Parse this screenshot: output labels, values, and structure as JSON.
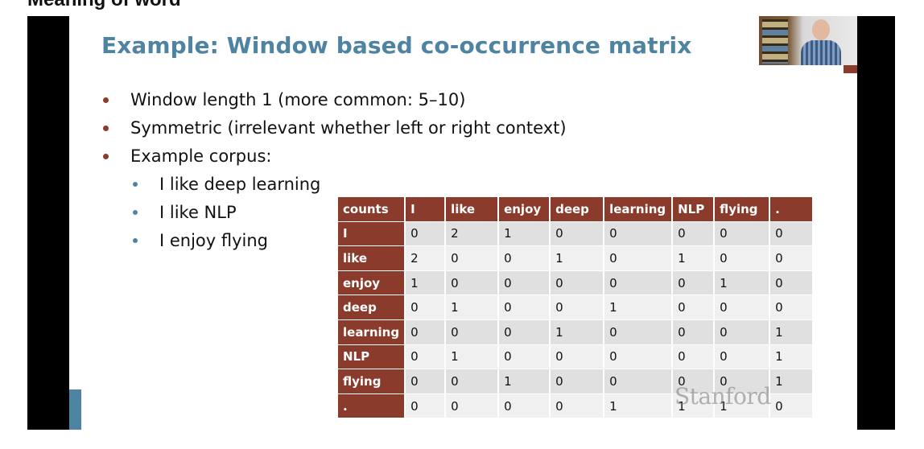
{
  "top_caption": "Meaning of word",
  "slide": {
    "title": "Example: Window based co-occurrence matrix",
    "bullets": [
      "Window length 1 (more common: 5–10)",
      "Symmetric (irrelevant whether left or right context)",
      "Example corpus:"
    ],
    "sub_bullets": [
      "I like deep learning",
      "I like NLP",
      "I enjoy flying"
    ],
    "watermark": "Stanford"
  },
  "table": {
    "corner": "counts",
    "headers": [
      "I",
      "like",
      "enjoy",
      "deep",
      "learning",
      "NLP",
      "flying",
      "."
    ],
    "rows": [
      {
        "label": "I",
        "cells": [
          "0",
          "2",
          "1",
          "0",
          "0",
          "0",
          "0",
          "0"
        ]
      },
      {
        "label": "like",
        "cells": [
          "2",
          "0",
          "0",
          "1",
          "0",
          "1",
          "0",
          "0"
        ]
      },
      {
        "label": "enjoy",
        "cells": [
          "1",
          "0",
          "0",
          "0",
          "0",
          "0",
          "1",
          "0"
        ]
      },
      {
        "label": "deep",
        "cells": [
          "0",
          "1",
          "0",
          "0",
          "1",
          "0",
          "0",
          "0"
        ]
      },
      {
        "label": "learning",
        "cells": [
          "0",
          "0",
          "0",
          "1",
          "0",
          "0",
          "0",
          "1"
        ]
      },
      {
        "label": "NLP",
        "cells": [
          "0",
          "1",
          "0",
          "0",
          "0",
          "0",
          "0",
          "1"
        ]
      },
      {
        "label": "flying",
        "cells": [
          "0",
          "0",
          "1",
          "0",
          "0",
          "0",
          "0",
          "1"
        ]
      },
      {
        "label": ".",
        "cells": [
          "0",
          "0",
          "0",
          "0",
          "1",
          "1",
          "1",
          "0"
        ]
      }
    ]
  },
  "colors": {
    "title": "#4e83a1",
    "table_header": "#8a3b2b",
    "bullet_dot": "#8a3b2b",
    "sub_bullet_dot": "#4e83a1",
    "row_odd": "#e0e0e0",
    "row_even": "#f0f0f0"
  },
  "icons": {
    "webcam": "presenter-webcam-feed"
  }
}
